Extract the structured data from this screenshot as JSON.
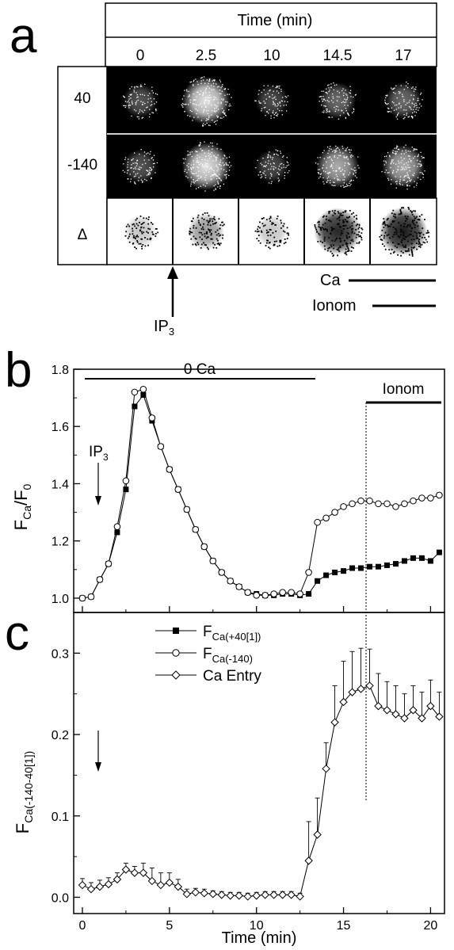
{
  "panel_a": {
    "letter": "a",
    "time_header": "Time (min)",
    "columns": [
      "0",
      "2.5",
      "10",
      "14.5",
      "17"
    ],
    "rows": [
      "40",
      "-140",
      "Δ"
    ],
    "intensity": {
      "row40": [
        0.35,
        1.0,
        0.3,
        0.45,
        0.45
      ],
      "row140": [
        0.35,
        1.0,
        0.3,
        0.75,
        0.75
      ],
      "delta": [
        0.25,
        0.45,
        0.25,
        0.95,
        1.0
      ]
    },
    "ca_label": "Ca",
    "ionom_label": "Ionom",
    "ip3_label": "IP",
    "ip3_sub": "3"
  },
  "chart_data": [
    {
      "type": "line",
      "letter": "b",
      "ylabel_main": "F",
      "ylabel_sub": "Ca",
      "ylabel_main2": "/F",
      "ylabel_sub2": "0",
      "ylim": [
        0.95,
        1.8
      ],
      "xlim": [
        -0.5,
        20.8
      ],
      "yticks": [
        "1.0",
        "1.2",
        "1.4",
        "1.6",
        "1.8"
      ],
      "ca0_label": "0 Ca",
      "ionom_label": "Ionom",
      "ip3_label": "IP",
      "ip3_sub": "3",
      "series": [
        {
          "x": [
            0,
            0.5,
            1,
            1.5,
            2,
            2.5,
            3,
            3.5,
            4,
            4.5,
            5,
            5.5,
            6,
            6.5,
            7,
            7.5,
            8,
            8.5,
            9,
            9.5,
            10,
            10.5,
            11,
            11.5,
            12,
            12.5,
            13,
            13.5,
            14,
            14.5,
            15,
            15.5,
            16,
            16.5,
            17,
            17.5,
            18,
            18.5,
            19,
            19.5,
            20,
            20.5
          ],
          "y": [
            1.0,
            1.005,
            1.065,
            1.12,
            1.23,
            1.38,
            1.67,
            1.71,
            1.62,
            1.53,
            1.45,
            1.38,
            1.31,
            1.24,
            1.18,
            1.13,
            1.09,
            1.06,
            1.04,
            1.02,
            1.015,
            1.01,
            1.01,
            1.015,
            1.015,
            1.01,
            1.015,
            1.06,
            1.08,
            1.09,
            1.095,
            1.105,
            1.105,
            1.11,
            1.11,
            1.115,
            1.12,
            1.13,
            1.14,
            1.14,
            1.13,
            1.16
          ]
        },
        {
          "x": [
            0,
            0.5,
            1,
            1.5,
            2,
            2.5,
            3,
            3.5,
            4,
            4.5,
            5,
            5.5,
            6,
            6.5,
            7,
            7.5,
            8,
            8.5,
            9,
            9.5,
            10,
            10.5,
            11,
            11.5,
            12,
            12.5,
            13,
            13.5,
            14,
            14.5,
            15,
            15.5,
            16,
            16.5,
            17,
            17.5,
            18,
            18.5,
            19,
            19.5,
            20,
            20.5
          ],
          "y": [
            1.0,
            1.005,
            1.065,
            1.12,
            1.25,
            1.41,
            1.72,
            1.73,
            1.63,
            1.53,
            1.45,
            1.38,
            1.31,
            1.24,
            1.18,
            1.13,
            1.09,
            1.06,
            1.04,
            1.02,
            1.01,
            1.01,
            1.015,
            1.02,
            1.02,
            1.015,
            1.09,
            1.265,
            1.28,
            1.3,
            1.32,
            1.33,
            1.34,
            1.34,
            1.33,
            1.33,
            1.32,
            1.33,
            1.34,
            1.35,
            1.35,
            1.36
          ]
        }
      ]
    },
    {
      "type": "line",
      "letter": "c",
      "ylabel_main": "F",
      "ylabel_sub": "Ca(-140-40[1])",
      "xlabel": "Time (min)",
      "ylim": [
        -0.02,
        0.35
      ],
      "xlim": [
        -0.5,
        20.8
      ],
      "yticks": [
        "0.0",
        "0.1",
        "0.2",
        "0.3"
      ],
      "xticks": [
        "0",
        "5",
        "10",
        "15",
        "20"
      ],
      "legend": [
        {
          "main": "F",
          "sub": "Ca(+40[1])",
          "marker": "square"
        },
        {
          "main": "F",
          "sub": "Ca(-140)",
          "marker": "circle"
        },
        {
          "main": "Ca Entry",
          "sub": "",
          "marker": "diamond"
        }
      ],
      "series": [
        {
          "name": "Ca Entry",
          "x": [
            0,
            0.5,
            1,
            1.5,
            2,
            2.5,
            3,
            3.5,
            4,
            4.5,
            5,
            5.5,
            6,
            6.5,
            7,
            7.5,
            8,
            8.5,
            9,
            9.5,
            10,
            10.5,
            11,
            11.5,
            12,
            12.5,
            13,
            13.5,
            14,
            14.5,
            15,
            15.5,
            16,
            16.5,
            17,
            17.5,
            18,
            18.5,
            19,
            19.5,
            20,
            20.5
          ],
          "y": [
            0.015,
            0.01,
            0.013,
            0.016,
            0.022,
            0.034,
            0.03,
            0.03,
            0.02,
            0.015,
            0.018,
            0.013,
            0.004,
            0.006,
            0.005,
            0.004,
            0.003,
            0.002,
            0.002,
            0.001,
            0.002,
            0.003,
            0.003,
            0.003,
            0.003,
            0.001,
            0.045,
            0.077,
            0.158,
            0.215,
            0.24,
            0.252,
            0.256,
            0.26,
            0.235,
            0.23,
            0.225,
            0.22,
            0.23,
            0.22,
            0.235,
            0.222
          ],
          "err": [
            0.008,
            0.008,
            0.008,
            0.008,
            0.008,
            0.008,
            0.008,
            0.012,
            0.016,
            0.015,
            0.012,
            0.009,
            0.006,
            0.005,
            0.005,
            0.004,
            0.004,
            0.004,
            0.004,
            0.004,
            0.004,
            0.004,
            0.004,
            0.004,
            0.004,
            0.004,
            0.048,
            0.045,
            0.032,
            0.045,
            0.05,
            0.05,
            0.05,
            0.045,
            0.04,
            0.035,
            0.035,
            0.03,
            0.03,
            0.032,
            0.032,
            0.03
          ]
        }
      ]
    }
  ]
}
